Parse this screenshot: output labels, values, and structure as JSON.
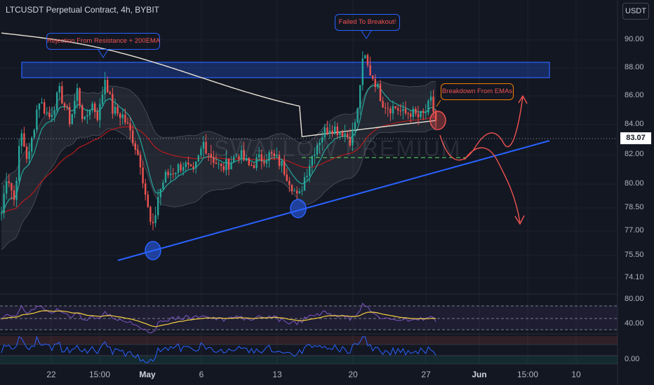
{
  "header": {
    "title": "LTCUSDT Perpetual Contract, 4h, BYBIT",
    "currency": "USDT"
  },
  "watermark": "SWALLOW PREMIUM",
  "colors": {
    "background": "#131722",
    "bull": "#26a69a",
    "bear": "#ef5350",
    "trendline": "#2962ff",
    "resistance_zone": "#2962ff",
    "ema200": "#e8e3d6",
    "ema50": "#d1d4dc",
    "ema_fast": "#26a69a",
    "ema_red": "#b71c1c",
    "annotation": "#ef5350",
    "rsi": "#7e57c2",
    "rsi_ma": "#f5d041",
    "osc": "#2962ff"
  },
  "chart_data": {
    "type": "candlestick",
    "symbol": "LTCUSDT Perpetual Contract",
    "timeframe": "4h",
    "exchange": "BYBIT",
    "last_price": "83.07",
    "y_ticks": [
      "90.00",
      "88.00",
      "86.00",
      "84.00",
      "82.00",
      "80.00",
      "78.50",
      "77.00",
      "75.50",
      "74.10"
    ],
    "y_range": [
      74.1,
      91.0
    ],
    "x_ticks": [
      "22",
      "15:00",
      "May",
      "6",
      "13",
      "20",
      "27",
      "Jun",
      "15:00",
      "10"
    ],
    "x_ticks_bold": [
      "May",
      "Jun"
    ],
    "price_path": [
      [
        0,
        77.5
      ],
      [
        10,
        80.8
      ],
      [
        20,
        79.0
      ],
      [
        30,
        83.5
      ],
      [
        40,
        81.5
      ],
      [
        55,
        85.8
      ],
      [
        70,
        84.5
      ],
      [
        85,
        86.3
      ],
      [
        100,
        84.2
      ],
      [
        110,
        86.4
      ],
      [
        120,
        84.0
      ],
      [
        130,
        85.6
      ],
      [
        140,
        84.5
      ],
      [
        150,
        87.4
      ],
      [
        160,
        85.0
      ],
      [
        175,
        84.6
      ],
      [
        190,
        83.0
      ],
      [
        200,
        81.5
      ],
      [
        210,
        78.6
      ],
      [
        217,
        76.8
      ],
      [
        225,
        79.2
      ],
      [
        235,
        80.5
      ],
      [
        250,
        81.0
      ],
      [
        262,
        81.4
      ],
      [
        275,
        80.6
      ],
      [
        290,
        82.8
      ],
      [
        300,
        82.0
      ],
      [
        315,
        81.0
      ],
      [
        325,
        81.4
      ],
      [
        340,
        82.1
      ],
      [
        355,
        81.2
      ],
      [
        370,
        81.7
      ],
      [
        385,
        82.0
      ],
      [
        400,
        81.4
      ],
      [
        415,
        80.1
      ],
      [
        425,
        78.9
      ],
      [
        432,
        80.2
      ],
      [
        440,
        81.3
      ],
      [
        450,
        82.6
      ],
      [
        460,
        83.4
      ],
      [
        470,
        83.9
      ],
      [
        480,
        83.7
      ],
      [
        490,
        83.5
      ],
      [
        500,
        83.0
      ],
      [
        510,
        85.0
      ],
      [
        515,
        88.0
      ],
      [
        520,
        88.8
      ],
      [
        525,
        87.9
      ],
      [
        535,
        87.0
      ],
      [
        545,
        85.6
      ],
      [
        555,
        85.2
      ],
      [
        565,
        85.2
      ],
      [
        575,
        84.7
      ],
      [
        585,
        84.9
      ],
      [
        595,
        84.5
      ],
      [
        605,
        84.7
      ],
      [
        615,
        85.7
      ],
      [
        620,
        84.3
      ],
      [
        624,
        84.2
      ]
    ],
    "resistance_zone": [
      87.3,
      88.4
    ],
    "trendline": [
      [
        75.2,
        "start"
      ],
      [
        83.0,
        "end"
      ]
    ],
    "support_dashed": 81.8,
    "rsi_levels": [
      "80.00",
      "40.00"
    ],
    "osc_levels": [
      "0.00"
    ],
    "annotations": [
      {
        "label": "Rejection From Resistance + 200EMA"
      },
      {
        "label": "Failed To Breakout!"
      },
      {
        "label": "Breakdown From EMAs"
      }
    ]
  }
}
